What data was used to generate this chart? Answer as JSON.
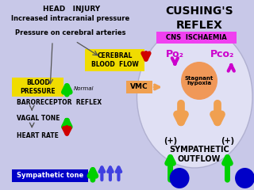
{
  "bg_color": "#c8c8e8",
  "title": "CUSHING'S\nREFLEX",
  "labels": {
    "head_injury": "HEAD   INJURY",
    "increased_icp": "Increased intracranial pressure",
    "pressure_arteries": "Pressure on cerebral arteries",
    "cerebral_blood_flow": "CEREBRAL\nBLOOD  FLOW",
    "blood_pressure": "BLOOD\nPRESSURE",
    "normal": "Normal",
    "baroreceptor": "BARORECEPTOR  REFLEX",
    "vagal_tone": "VAGAL TONE",
    "heart_rate": "HEART RATE",
    "sympathetic_tone": "Sympathetic tone",
    "vmc": "VMC",
    "cns_ischaemia": "CNS  ISCHAEMIA",
    "po2": "Po₂",
    "pco2": "Pco₂",
    "stagnant_hypoxia": "Stagnant\nhypoxia",
    "sympathetic_outflow": "SYMPATHETIC\nOUTFLOW",
    "plus1": "(+)",
    "plus2": "(+)"
  },
  "colors": {
    "lavender": "#c8c8e8",
    "yellow": "#f0dc00",
    "orange_box": "#f0a050",
    "orange_circle": "#f09858",
    "magenta": "#f040f0",
    "green_arrow": "#00d000",
    "red_arrow": "#d00000",
    "blue": "#0000c8",
    "blue_arrow": "#4040e0",
    "dark_text": "#000000",
    "white": "#ffffff",
    "ellipse_fill": "#e0e0f4",
    "ellipse_edge": "#b0b0d0"
  }
}
